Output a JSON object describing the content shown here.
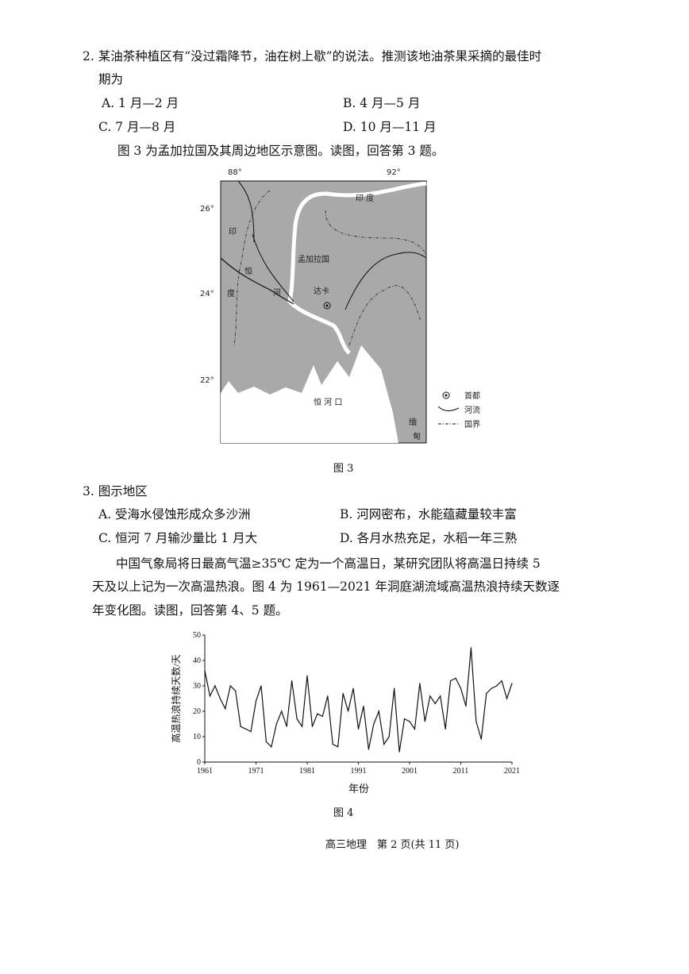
{
  "q2": {
    "stem_line1": "2. 某油茶种植区有“没过霜降节，油在树上歇”的说法。推测该地油茶果采摘的最佳时",
    "stem_line2": "期为",
    "options": [
      "A. 1 月—2 月",
      "B. 4 月—5 月",
      "C. 7 月—8 月",
      "D. 10 月—11 月"
    ]
  },
  "fig3_intro": "图 3 为孟加拉国及其周边地区示意图。读图，回答第 3 题。",
  "map": {
    "lon_labels": [
      "88°",
      "92°"
    ],
    "lat_labels": [
      "26°",
      "24°",
      "22°"
    ],
    "labels": {
      "india_top": "印  度",
      "india_left_1": "印",
      "india_left_2": "度",
      "ganges_1": "恒",
      "ganges_2": "河",
      "bangladesh": "孟加拉国",
      "dhaka": "达卡",
      "ganges_mouth": "恒  河  口",
      "myanmar_1": "缅",
      "myanmar_2": "甸"
    },
    "legend": {
      "capital": "首都",
      "river": "河流",
      "border": "国界"
    },
    "colors": {
      "land": "#a9a9a9",
      "sea": "#ffffff",
      "river": "#ffffff"
    }
  },
  "fig3_caption": "图 3",
  "q3": {
    "stem": "3. 图示地区",
    "options": [
      "A. 受海水侵蚀形成众多沙洲",
      "B. 河网密布，水能蕴藏量较丰富",
      "C. 恒河 7 月输沙量比 1 月大",
      "D. 各月水热充足，水稻一年三熟"
    ]
  },
  "passage": {
    "line1": "中国气象局将日最高气温≥35℃ 定为一个高温日，某研究团队将高温日持续 5",
    "line2": "天及以上记为一次高温热浪。图 4 为 1961—2021 年洞庭湖流域高温热浪持续天数逐",
    "line3": "年变化图。读图，回答第 4、5 题。"
  },
  "chart_data": {
    "type": "line",
    "xlabel": "年份",
    "ylabel": "高温热浪持续天数/天",
    "xlim": [
      1961,
      2021
    ],
    "ylim": [
      0,
      50
    ],
    "xticks": [
      1961,
      1971,
      1981,
      1991,
      2001,
      2011,
      2021
    ],
    "yticks": [
      0,
      10,
      20,
      30,
      40,
      50
    ],
    "grid": false,
    "x_start": 1961,
    "values": [
      36,
      26,
      30,
      25,
      21,
      30,
      28,
      14,
      13,
      12,
      24,
      30,
      8,
      6,
      15,
      20,
      14,
      32,
      17,
      14,
      34,
      14,
      19,
      18,
      26,
      7,
      6,
      27,
      20,
      29,
      13,
      22,
      5,
      15,
      20,
      7,
      10,
      29,
      4,
      17,
      16,
      13,
      31,
      16,
      26,
      23,
      26,
      13,
      32,
      33,
      29,
      22,
      45,
      16,
      9,
      27,
      29,
      30,
      32,
      25,
      31
    ]
  },
  "fig4_caption": "图 4",
  "footer": "高三地理　第 2 页(共 11 页)"
}
